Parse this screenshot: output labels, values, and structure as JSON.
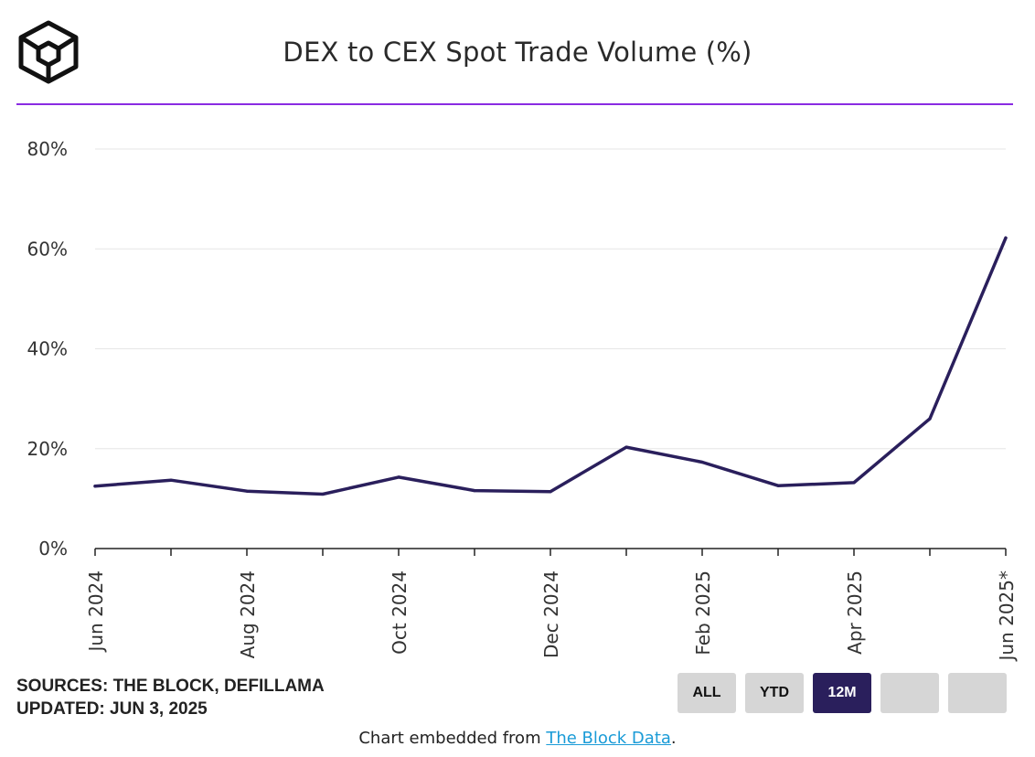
{
  "header": {
    "title": "DEX to CEX Spot Trade Volume (%)"
  },
  "footer": {
    "sources": "SOURCES: THE BLOCK, DEFILLAMA",
    "updated": "UPDATED: JUN 3, 2025",
    "embed_prefix": "Chart embedded from ",
    "embed_link": "The Block Data",
    "embed_suffix": "."
  },
  "range_buttons": [
    {
      "label": "ALL",
      "active": false
    },
    {
      "label": "YTD",
      "active": false
    },
    {
      "label": "12M",
      "active": true
    },
    {
      "label": "",
      "active": false
    },
    {
      "label": "",
      "active": false
    }
  ],
  "colors": {
    "line": "#2a1f5c",
    "accent_rule": "#8a2be2",
    "gridline": "#e6e6e6",
    "axis": "#222222",
    "button_active": "#2a1f5c",
    "button_inactive": "#d6d6d6",
    "link": "#1a9bd7"
  },
  "chart_data": {
    "type": "line",
    "title": "DEX to CEX Spot Trade Volume (%)",
    "xlabel": "",
    "ylabel": "",
    "ylim": [
      0,
      80
    ],
    "yticks": [
      "0%",
      "20%",
      "40%",
      "60%",
      "80%"
    ],
    "grid": true,
    "legend": "none",
    "x": [
      "Jun 2024",
      "Jul 2024",
      "Aug 2024",
      "Sep 2024",
      "Oct 2024",
      "Nov 2024",
      "Dec 2024",
      "Jan 2025",
      "Feb 2025",
      "Mar 2025",
      "Apr 2025",
      "May 2025",
      "Jun 2025*"
    ],
    "xtick_labels": [
      "Jun 2024",
      "",
      "Aug 2024",
      "",
      "Oct 2024",
      "",
      "Dec 2024",
      "",
      "Feb 2025",
      "",
      "Apr 2025",
      "",
      "Jun 2025*"
    ],
    "series": [
      {
        "values": [
          12.5,
          13.7,
          11.5,
          10.9,
          14.3,
          11.6,
          11.4,
          20.3,
          17.3,
          12.6,
          13.2,
          26.0,
          62.2
        ]
      }
    ]
  }
}
